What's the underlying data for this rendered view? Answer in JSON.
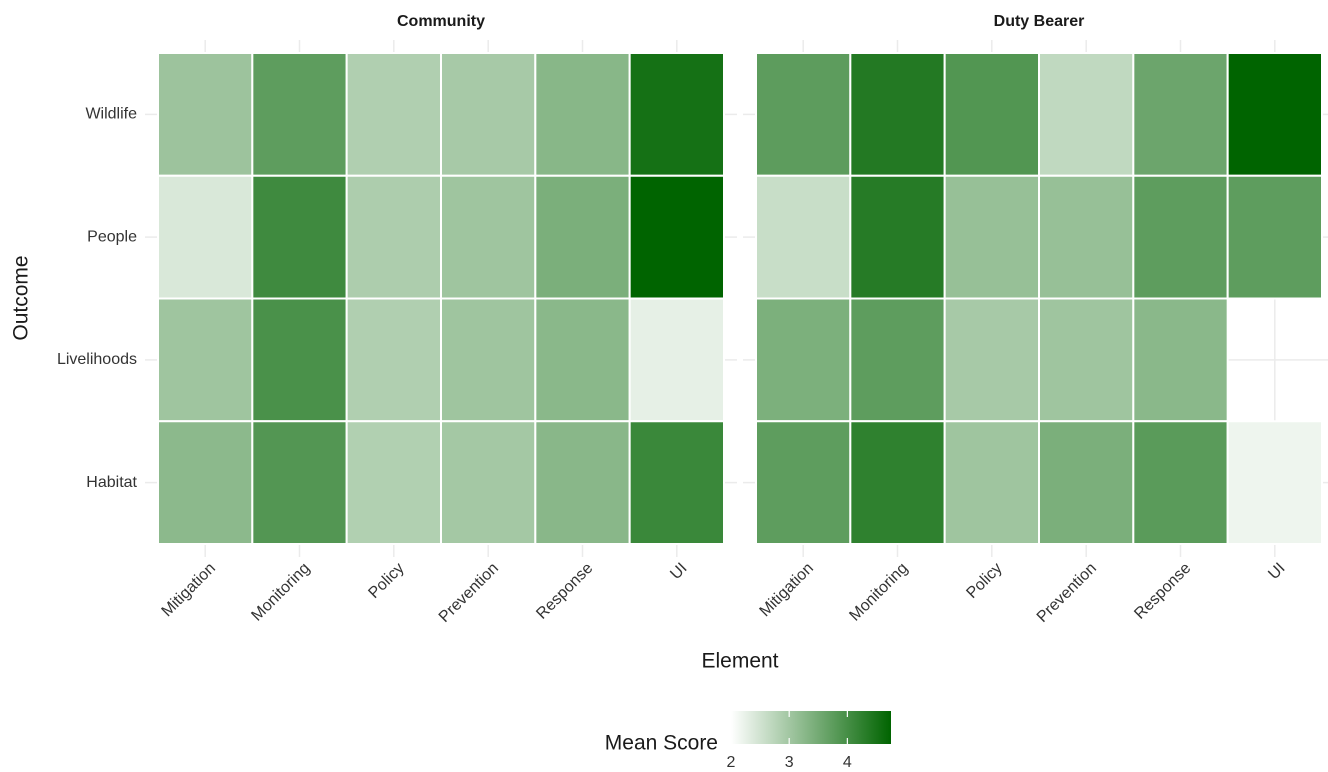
{
  "chart_data": {
    "type": "heatmap",
    "x_label": "Element",
    "y_label": "Outcome",
    "categories": [
      "Mitigation",
      "Monitoring",
      "Policy",
      "Prevention",
      "Response",
      "UI"
    ],
    "y_categories": [
      "Wildlife",
      "People",
      "Livelihoods",
      "Habitat"
    ],
    "facets": [
      {
        "title": "Community",
        "values": [
          [
            3.06,
            3.74,
            2.85,
            2.95,
            3.28,
            4.52
          ],
          [
            2.41,
            4.07,
            2.88,
            3.03,
            3.42,
            4.75
          ],
          [
            3.03,
            3.95,
            2.85,
            3.03,
            3.26,
            2.27
          ],
          [
            3.24,
            3.86,
            2.84,
            2.98,
            3.27,
            4.12
          ]
        ]
      },
      {
        "title": "Duty Bearer",
        "values": [
          [
            3.75,
            4.37,
            3.87,
            2.68,
            3.59,
            4.75
          ],
          [
            2.59,
            4.34,
            3.12,
            3.12,
            3.74,
            3.74
          ],
          [
            3.41,
            3.74,
            2.95,
            3.03,
            3.26,
            null
          ],
          [
            3.74,
            4.24,
            3.03,
            3.42,
            3.78,
            2.18
          ]
        ]
      }
    ],
    "legend_title": "Mean Score",
    "fill_lim": [
      2,
      4.75
    ],
    "fill_ticks": [
      2,
      3,
      4
    ],
    "low_color": "#ffffff",
    "high_color": "#006400",
    "grid": true
  }
}
